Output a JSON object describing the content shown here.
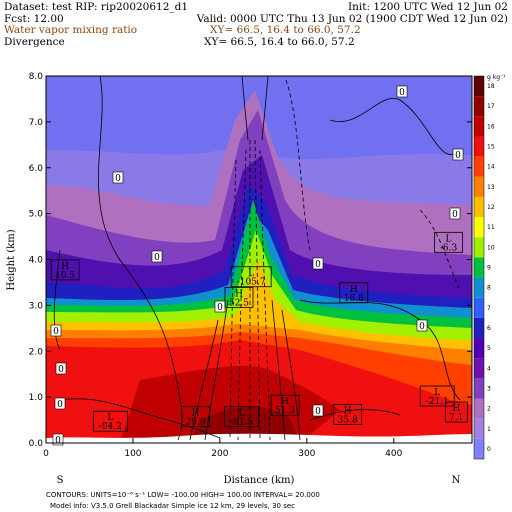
{
  "header": {
    "dataset": "Dataset: test   RIP: rip20020612_d1",
    "init": "Init: 1200 UTC Wed 12 Jun 02",
    "fcst": "Fcst:    12.00",
    "valid": "Valid: 0000 UTC Thu 13 Jun 02  (1900 CDT Wed 12 Jun 02)",
    "field1": "Water vapor mixing ratio",
    "field1_xy": "XY=   66.5, 16.4 to   66.0, 57.2",
    "field2": "Divergence",
    "field2_xy": "XY=   66.5, 16.4 to   66.0, 57.2",
    "field1_color": "#8b4513"
  },
  "footer": {
    "line1": "CONTOURS:  UNITS=10⁻⁶ s⁻¹   LOW= -100.00        HIGH=  100.00        INTERVAL=   20.000",
    "line2": "Model info: V3.5.0   Grell      Blackadar   Simple ice     12 km,   29 levels,    30 sec"
  },
  "chart_data": {
    "type": "heatmap",
    "title": "Water vapor mixing ratio",
    "xlabel": "Distance (km)",
    "ylabel": "Height (km)",
    "xlim": [
      0,
      490
    ],
    "ylim": [
      0,
      8
    ],
    "x_ticks": [
      "0",
      "100",
      "200",
      "300",
      "400"
    ],
    "y_ticks": [
      "0.0",
      "1.0",
      "2.0",
      "3.0",
      "4.0",
      "5.0",
      "6.0",
      "7.0",
      "8.0"
    ],
    "x_end_labels": {
      "left": "S",
      "right": "N"
    },
    "colorbar": {
      "unit": "g kg⁻¹",
      "labels": [
        "0",
        "1",
        "2",
        "3",
        "4",
        "5",
        "6",
        "7",
        "8",
        "9",
        "10",
        "11",
        "12",
        "13",
        "14",
        "15",
        "16",
        "17",
        "18"
      ],
      "colors": [
        "#8080ff",
        "#a080e0",
        "#b070c0",
        "#8040c0",
        "#7010b0",
        "#5000b0",
        "#2020c0",
        "#3060ff",
        "#1090d0",
        "#00c040",
        "#a0f000",
        "#ffff00",
        "#ffc000",
        "#ff8000",
        "#ff4000",
        "#f01010",
        "#c00000",
        "#900000",
        "#600000"
      ]
    },
    "height_axis_max": 8.0,
    "overlay_contours": "Divergence",
    "annotations": [
      {
        "text": "L",
        "value": "-105.7",
        "x": 236,
        "y": 3.45
      },
      {
        "text": "H",
        "value": "52.5",
        "x": 222,
        "y": 3.0
      },
      {
        "text": "H",
        "value": "10.5",
        "x": 22,
        "y": 3.6
      },
      {
        "text": "H",
        "value": "16.8",
        "x": 354,
        "y": 3.1
      },
      {
        "text": "L",
        "value": "-6.3",
        "x": 463,
        "y": 4.2
      },
      {
        "text": "L",
        "value": "-21.1",
        "x": 450,
        "y": 0.85
      },
      {
        "text": "H",
        "value": "7.1",
        "x": 472,
        "y": 0.5
      },
      {
        "text": "L",
        "value": "-94.2",
        "x": 74,
        "y": 0.3
      },
      {
        "text": "H",
        "value": "29.9",
        "x": 172,
        "y": 0.4
      },
      {
        "text": "L",
        "value": "-91.5",
        "x": 225,
        "y": 0.4
      },
      {
        "text": "H",
        "value": "51.3",
        "x": 275,
        "y": 0.65
      },
      {
        "text": "H",
        "value": "35.8",
        "x": 347,
        "y": 0.45
      }
    ],
    "zero_labels": [
      "0",
      "0",
      "0",
      "0",
      "0",
      "0",
      "0",
      "0",
      "0",
      "0",
      "0",
      "0",
      "0"
    ]
  }
}
